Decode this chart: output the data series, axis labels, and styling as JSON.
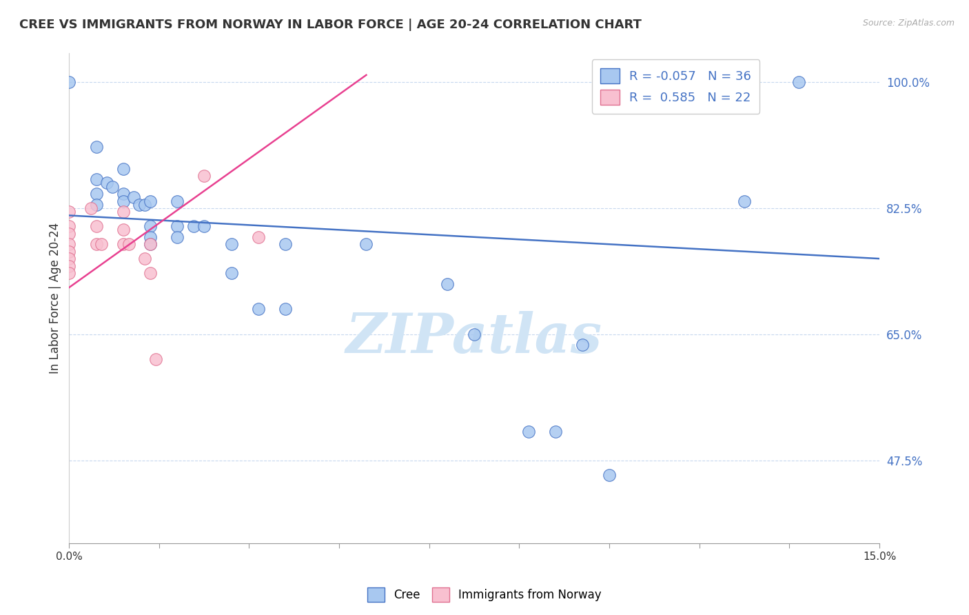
{
  "title": "CREE VS IMMIGRANTS FROM NORWAY IN LABOR FORCE | AGE 20-24 CORRELATION CHART",
  "source": "Source: ZipAtlas.com",
  "ylabel": "In Labor Force | Age 20-24",
  "xmin": 0.0,
  "xmax": 0.15,
  "ymin": 0.36,
  "ymax": 1.04,
  "yticks": [
    0.475,
    0.65,
    0.825,
    1.0
  ],
  "ytick_labels": [
    "47.5%",
    "65.0%",
    "82.5%",
    "100.0%"
  ],
  "xticks": [
    0.0,
    0.0167,
    0.0333,
    0.05,
    0.0667,
    0.0833,
    0.1,
    0.1167,
    0.1333,
    0.15
  ],
  "xtick_labels": [
    "0.0%",
    "",
    "",
    "",
    "",
    "",
    "",
    "",
    "",
    "15.0%"
  ],
  "legend_r_cree": "-0.057",
  "legend_n_cree": "36",
  "legend_r_norway": "0.585",
  "legend_n_norway": "22",
  "cree_color": "#a8c8f0",
  "norway_color": "#f8c0d0",
  "cree_edge_color": "#4472c4",
  "norway_edge_color": "#e07090",
  "cree_line_color": "#4472c4",
  "norway_line_color": "#e84090",
  "ytick_color": "#4472c4",
  "watermark_color": "#d0e4f5",
  "cree_points": [
    [
      0.0,
      1.0
    ],
    [
      0.005,
      0.91
    ],
    [
      0.005,
      0.865
    ],
    [
      0.005,
      0.845
    ],
    [
      0.005,
      0.83
    ],
    [
      0.007,
      0.86
    ],
    [
      0.008,
      0.855
    ],
    [
      0.01,
      0.88
    ],
    [
      0.01,
      0.845
    ],
    [
      0.01,
      0.835
    ],
    [
      0.012,
      0.84
    ],
    [
      0.013,
      0.83
    ],
    [
      0.014,
      0.83
    ],
    [
      0.015,
      0.835
    ],
    [
      0.015,
      0.8
    ],
    [
      0.015,
      0.785
    ],
    [
      0.015,
      0.775
    ],
    [
      0.02,
      0.835
    ],
    [
      0.02,
      0.8
    ],
    [
      0.02,
      0.785
    ],
    [
      0.023,
      0.8
    ],
    [
      0.025,
      0.8
    ],
    [
      0.03,
      0.775
    ],
    [
      0.03,
      0.735
    ],
    [
      0.035,
      0.685
    ],
    [
      0.04,
      0.775
    ],
    [
      0.04,
      0.685
    ],
    [
      0.055,
      0.775
    ],
    [
      0.07,
      0.72
    ],
    [
      0.075,
      0.65
    ],
    [
      0.085,
      0.515
    ],
    [
      0.09,
      0.515
    ],
    [
      0.095,
      0.635
    ],
    [
      0.1,
      0.455
    ],
    [
      0.125,
      0.835
    ],
    [
      0.135,
      1.0
    ]
  ],
  "norway_points": [
    [
      0.0,
      0.82
    ],
    [
      0.0,
      0.8
    ],
    [
      0.0,
      0.79
    ],
    [
      0.0,
      0.775
    ],
    [
      0.0,
      0.765
    ],
    [
      0.0,
      0.755
    ],
    [
      0.0,
      0.745
    ],
    [
      0.0,
      0.735
    ],
    [
      0.004,
      0.825
    ],
    [
      0.005,
      0.8
    ],
    [
      0.005,
      0.775
    ],
    [
      0.006,
      0.775
    ],
    [
      0.01,
      0.82
    ],
    [
      0.01,
      0.795
    ],
    [
      0.01,
      0.775
    ],
    [
      0.011,
      0.775
    ],
    [
      0.014,
      0.755
    ],
    [
      0.015,
      0.775
    ],
    [
      0.015,
      0.735
    ],
    [
      0.016,
      0.615
    ],
    [
      0.025,
      0.87
    ],
    [
      0.035,
      0.785
    ]
  ],
  "cree_trendline_x": [
    0.0,
    0.15
  ],
  "cree_trendline_y": [
    0.815,
    0.755
  ],
  "norway_trendline_x": [
    0.0,
    0.055
  ],
  "norway_trendline_y": [
    0.715,
    1.01
  ]
}
